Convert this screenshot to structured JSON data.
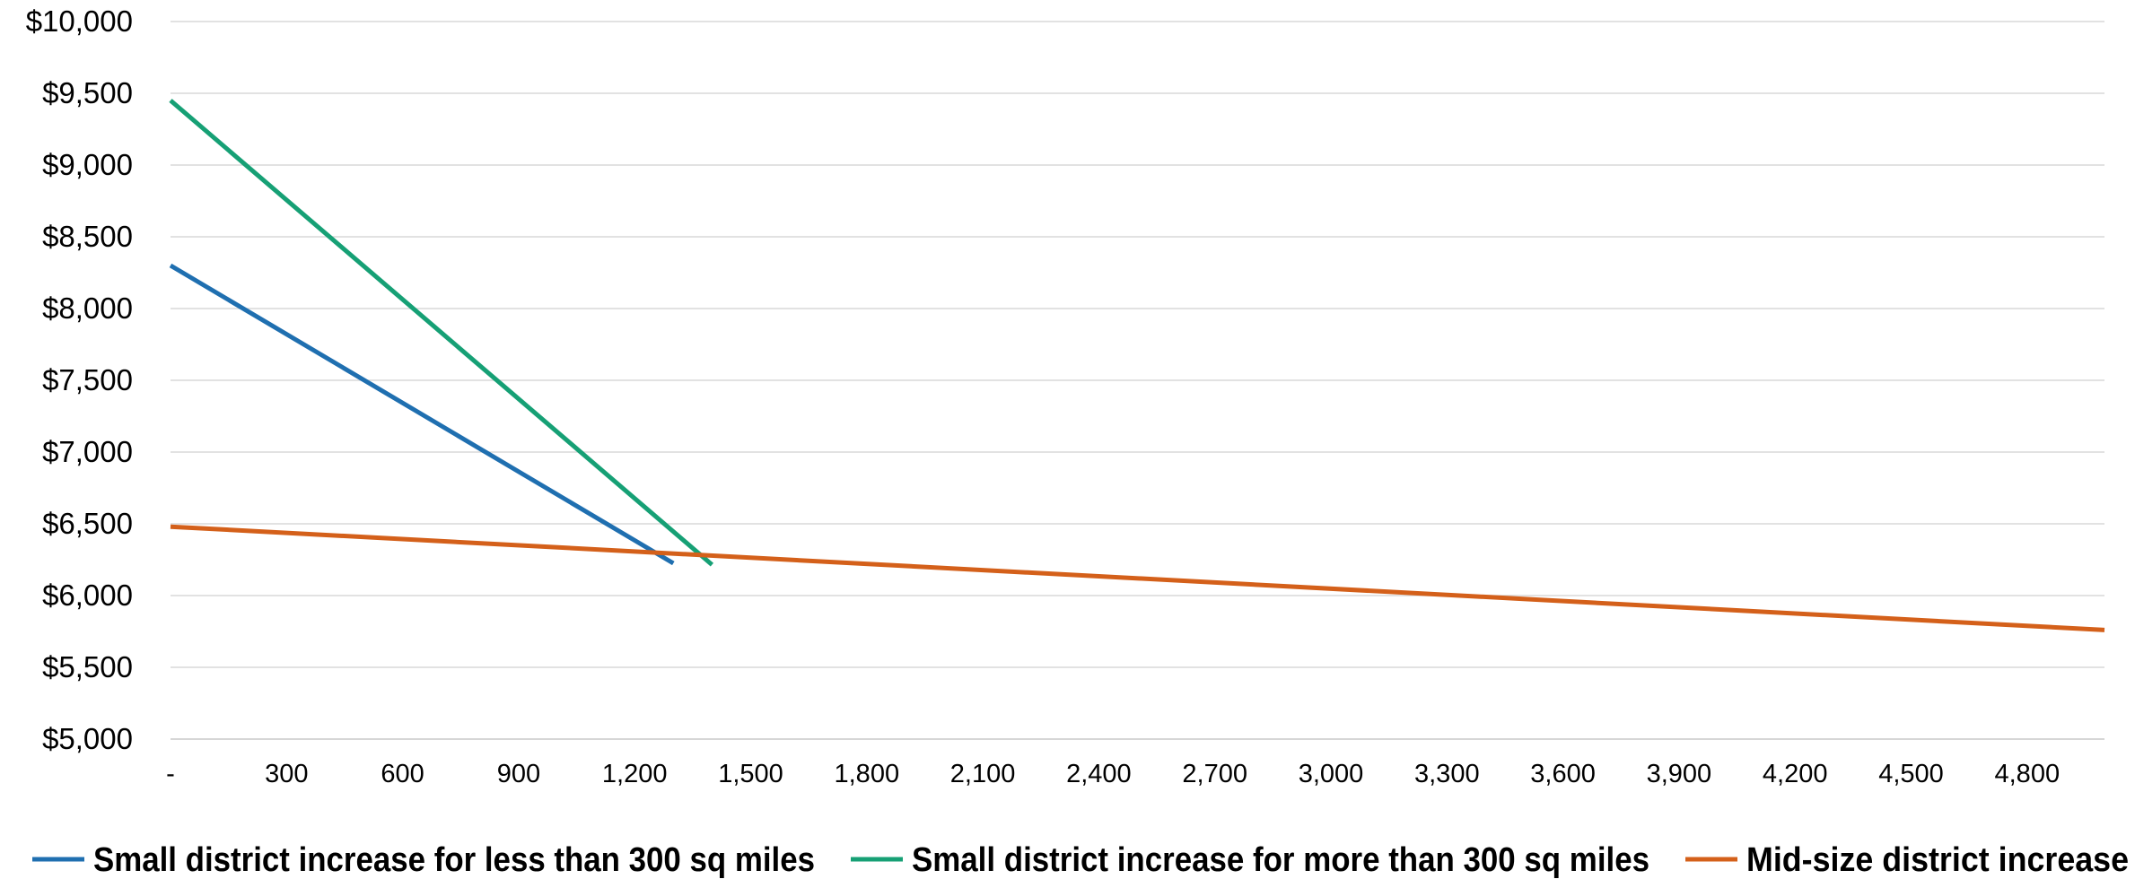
{
  "chart_data": {
    "type": "line",
    "title": "",
    "xlabel": "",
    "ylabel": "",
    "xlim": [
      0,
      5000
    ],
    "ylim": [
      5000,
      10000
    ],
    "y_ticks": [
      "$5,000",
      "$5,500",
      "$6,000",
      "$6,500",
      "$7,000",
      "$7,500",
      "$8,000",
      "$8,500",
      "$9,000",
      "$9,500",
      "$10,000"
    ],
    "x_ticks": [
      "-",
      "300",
      "600",
      "900",
      "1,200",
      "1,500",
      "1,800",
      "2,100",
      "2,400",
      "2,700",
      "3,000",
      "3,300",
      "3,600",
      "3,900",
      "4,200",
      "4,500",
      "4,800"
    ],
    "grid": "horizontal",
    "legend_position": "bottom",
    "series": [
      {
        "name": "Small district increase for less than 300 sq miles",
        "color": "#1f6fb0",
        "x": [
          0,
          1300
        ],
        "y": [
          8300,
          6225
        ]
      },
      {
        "name": "Small district increase for more than 300 sq miles",
        "color": "#16a075",
        "x": [
          0,
          1400
        ],
        "y": [
          9450,
          6215
        ]
      },
      {
        "name": "Mid-size district increase",
        "color": "#d4601a",
        "x": [
          0,
          5000
        ],
        "y": [
          6480,
          5760
        ]
      }
    ]
  }
}
